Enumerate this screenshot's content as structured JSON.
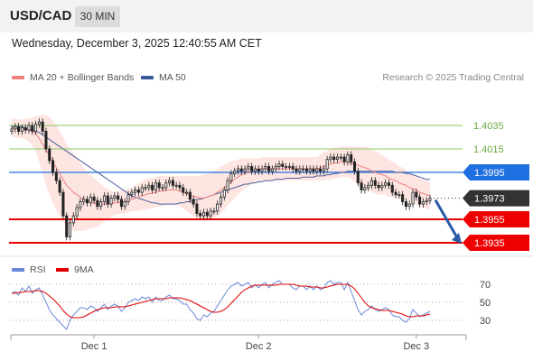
{
  "header": {
    "symbol": "USD/CAD",
    "timeframe": "30 MIN"
  },
  "datetime": "Wednesday, December 3, 2025 12:40:55 AM CET",
  "legend": {
    "ma20": {
      "label": "MA 20 + Bollinger Bands",
      "color": "#f08080"
    },
    "ma50": {
      "label": "MA 50",
      "color": "#3a5a9a"
    }
  },
  "credit": "Research © 2025 Trading Central",
  "rsi_legend": {
    "rsi": {
      "label": "RSI",
      "color": "#6a8ad8"
    },
    "ma9": {
      "label": "9MA",
      "color": "#e00000"
    }
  },
  "chart_data": [
    {
      "type": "candlestick",
      "title": "USD/CAD",
      "ylim": [
        1.3925,
        1.4065
      ],
      "x_ticks": [
        "Dec 1",
        "Dec 2",
        "Dec 3"
      ],
      "levels": [
        {
          "value": 1.4035,
          "label": "1.4035",
          "kind": "resistance",
          "color": "#8dc863"
        },
        {
          "value": 1.4015,
          "label": "1.4015",
          "kind": "resistance",
          "color": "#8dc863"
        },
        {
          "value": 1.3995,
          "label": "1.3995",
          "kind": "pivot",
          "color": "#1f6fe0"
        },
        {
          "value": 1.3973,
          "label": "1.3973",
          "kind": "last price",
          "color": "#333333"
        },
        {
          "value": 1.3955,
          "label": "1.3955",
          "kind": "support",
          "color": "#ee0000"
        },
        {
          "value": 1.3935,
          "label": "1.3935",
          "kind": "support",
          "color": "#ee0000"
        }
      ],
      "close": [
        1.4032,
        1.4034,
        1.403,
        1.4033,
        1.4031,
        1.4035,
        1.403,
        1.4036,
        1.4038,
        1.403,
        1.4015,
        1.4005,
        1.3995,
        1.3988,
        1.3978,
        1.3958,
        1.394,
        1.3952,
        1.3958,
        1.3965,
        1.397,
        1.3972,
        1.3969,
        1.3974,
        1.3971,
        1.3966,
        1.397,
        1.3975,
        1.3968,
        1.3973,
        1.3975,
        1.3972,
        1.3966,
        1.397,
        1.3976,
        1.3978,
        1.398,
        1.3978,
        1.3982,
        1.3982,
        1.3984,
        1.398,
        1.3986,
        1.3982,
        1.3982,
        1.3986,
        1.3988,
        1.3984,
        1.3984,
        1.3982,
        1.3978,
        1.3978,
        1.3972,
        1.3968,
        1.396,
        1.3958,
        1.3961,
        1.3958,
        1.3962,
        1.3962,
        1.3968,
        1.3974,
        1.398,
        1.3988,
        1.3994,
        1.3996,
        1.3998,
        1.3996,
        1.3998,
        1.4,
        1.3996,
        1.3998,
        1.3996,
        1.3998,
        1.4,
        1.3996,
        1.3998,
        1.4,
        1.4002,
        1.4,
        1.4,
        1.4,
        1.3998,
        1.3996,
        1.3998,
        1.3998,
        1.3996,
        1.3998,
        1.3996,
        1.3998,
        1.3996,
        1.3998,
        1.4006,
        1.4008,
        1.4006,
        1.4008,
        1.4008,
        1.4004,
        1.401,
        1.4004,
        1.3996,
        1.3986,
        1.398,
        1.3982,
        1.3984,
        1.3988,
        1.3984,
        1.3982,
        1.3984,
        1.3986,
        1.3984,
        1.3978,
        1.3976,
        1.3976,
        1.397,
        1.3966,
        1.3968,
        1.3978,
        1.3974,
        1.3968,
        1.397,
        1.3971,
        1.3973
      ],
      "ma20": [
        1.4033,
        1.4033,
        1.4032,
        1.4032,
        1.4032,
        1.4031,
        1.403,
        1.4028,
        1.4024,
        1.4019,
        1.4014,
        1.4009,
        1.4004,
        1.3999,
        1.3994,
        1.3989,
        1.3984,
        1.3981,
        1.3978,
        1.3976,
        1.3974,
        1.3972,
        1.3971,
        1.397,
        1.3969,
        1.3968,
        1.3968,
        1.3968,
        1.3968,
        1.3968,
        1.3969,
        1.3969,
        1.397,
        1.397,
        1.3971,
        1.3972,
        1.3973,
        1.3974,
        1.3975,
        1.3976,
        1.3977,
        1.3977,
        1.3978,
        1.3979,
        1.3979,
        1.398,
        1.398,
        1.398,
        1.398,
        1.3979,
        1.3978,
        1.3977,
        1.3976,
        1.3975,
        1.3974,
        1.3973,
        1.3973,
        1.3974,
        1.3975,
        1.3976,
        1.3978,
        1.398,
        1.3982,
        1.3985,
        1.3987,
        1.3989,
        1.3991,
        1.3993,
        1.3994,
        1.3995,
        1.3996,
        1.3997,
        1.3997,
        1.3998,
        1.3998,
        1.3998,
        1.3998,
        1.3998,
        1.3998,
        1.3998,
        1.3998,
        1.3998,
        1.3998,
        1.3998,
        1.3998,
        1.3998,
        1.3998,
        1.3998,
        1.3998,
        1.3998,
        1.3999,
        1.4,
        1.4001,
        1.4002,
        1.4003,
        1.4003,
        1.4004,
        1.4004,
        1.4004,
        1.4003,
        1.4002,
        1.4001,
        1.4,
        1.3999,
        1.3998,
        1.3996,
        1.3995,
        1.3994,
        1.3993,
        1.3992,
        1.399,
        1.3989,
        1.3988,
        1.3986,
        1.3985,
        1.3984,
        1.3982,
        1.3981,
        1.398,
        1.3978,
        1.3977,
        1.3976,
        1.3975
      ],
      "ma50": [
        1.4034,
        1.4034,
        1.4034,
        1.4034,
        1.4033,
        1.4032,
        1.4031,
        1.403,
        1.4029,
        1.4027,
        1.4025,
        1.4023,
        1.4021,
        1.4019,
        1.4017,
        1.4015,
        1.4013,
        1.4011,
        1.4009,
        1.4007,
        1.4005,
        1.4003,
        1.4001,
        1.3999,
        1.3997,
        1.3995,
        1.3993,
        1.3991,
        1.3989,
        1.3987,
        1.3985,
        1.3983,
        1.3981,
        1.3979,
        1.3977,
        1.3975,
        1.3974,
        1.3973,
        1.3972,
        1.3971,
        1.397,
        1.3969,
        1.3969,
        1.3968,
        1.3968,
        1.3968,
        1.3968,
        1.3968,
        1.3968,
        1.3969,
        1.3969,
        1.397,
        1.397,
        1.3971,
        1.3972,
        1.3972,
        1.3973,
        1.3974,
        1.3975,
        1.3976,
        1.3977,
        1.3978,
        1.3979,
        1.398,
        1.3981,
        1.3982,
        1.3983,
        1.3984,
        1.3985,
        1.3985,
        1.3986,
        1.3986,
        1.3987,
        1.3987,
        1.3988,
        1.3988,
        1.3988,
        1.3989,
        1.3989,
        1.3989,
        1.399,
        1.399,
        1.399,
        1.399,
        1.399,
        1.3991,
        1.3991,
        1.3991,
        1.3991,
        1.3992,
        1.3992,
        1.3992,
        1.3993,
        1.3993,
        1.3994,
        1.3994,
        1.3995,
        1.3995,
        1.3996,
        1.3996,
        1.3996,
        1.3996,
        1.3996,
        1.3996,
        1.3996,
        1.3996,
        1.3996,
        1.3996,
        1.3996,
        1.3996,
        1.3996,
        1.3996,
        1.3995,
        1.3995,
        1.3995,
        1.3994,
        1.3994,
        1.3993,
        1.3992,
        1.3991,
        1.399,
        1.3989,
        1.3989
      ],
      "bb_width": [
        0.0008,
        0.0008,
        0.0008,
        0.0008,
        0.0009,
        0.001,
        0.0012,
        0.0015,
        0.002,
        0.0025,
        0.003,
        0.0033,
        0.0035,
        0.0036,
        0.0036,
        0.0036,
        0.0035,
        0.0034,
        0.0033,
        0.0031,
        0.0029,
        0.0027,
        0.0025,
        0.0023,
        0.0021,
        0.0019,
        0.0017,
        0.0015,
        0.0013,
        0.0011,
        0.001,
        0.001,
        0.001,
        0.001,
        0.001,
        0.001,
        0.0011,
        0.0012,
        0.0012,
        0.0013,
        0.0013,
        0.0013,
        0.0013,
        0.0013,
        0.0013,
        0.0012,
        0.0012,
        0.0012,
        0.0012,
        0.0013,
        0.0014,
        0.0015,
        0.0016,
        0.0017,
        0.0018,
        0.0019,
        0.002,
        0.002,
        0.002,
        0.002,
        0.002,
        0.002,
        0.0019,
        0.0018,
        0.0017,
        0.0016,
        0.0015,
        0.0014,
        0.0013,
        0.0012,
        0.0011,
        0.001,
        0.001,
        0.001,
        0.001,
        0.001,
        0.001,
        0.001,
        0.001,
        0.001,
        0.001,
        0.001,
        0.001,
        0.001,
        0.001,
        0.001,
        0.001,
        0.001,
        0.001,
        0.001,
        0.0011,
        0.0012,
        0.0012,
        0.0013,
        0.0013,
        0.0013,
        0.0013,
        0.0013,
        0.0013,
        0.0014,
        0.0015,
        0.0016,
        0.0017,
        0.0018,
        0.0018,
        0.0018,
        0.0018,
        0.0018,
        0.0017,
        0.0016,
        0.0016,
        0.0015,
        0.0015,
        0.0014,
        0.0014,
        0.0013,
        0.0013,
        0.0012,
        0.0012,
        0.0012,
        0.0012,
        0.0012,
        0.0012
      ],
      "forecast_arrow": {
        "from": 1.3973,
        "to": 1.3935
      }
    },
    {
      "type": "line",
      "title": "RSI",
      "ylim": [
        15,
        80
      ],
      "y_ticks": [
        70,
        50,
        30
      ],
      "x_ticks": [
        "Dec 1",
        "Dec 2",
        "Dec 3"
      ],
      "series": [
        {
          "name": "RSI",
          "values": [
            60,
            62,
            58,
            66,
            62,
            68,
            60,
            64,
            66,
            58,
            50,
            42,
            36,
            32,
            28,
            24,
            20,
            30,
            36,
            40,
            44,
            44,
            42,
            46,
            44,
            40,
            44,
            48,
            42,
            46,
            48,
            46,
            40,
            44,
            50,
            52,
            54,
            52,
            56,
            54,
            56,
            50,
            56,
            52,
            52,
            56,
            58,
            54,
            54,
            52,
            48,
            48,
            42,
            38,
            32,
            30,
            36,
            34,
            38,
            40,
            46,
            52,
            58,
            64,
            68,
            70,
            72,
            68,
            70,
            72,
            66,
            70,
            66,
            70,
            72,
            66,
            70,
            72,
            74,
            70,
            70,
            70,
            66,
            64,
            68,
            68,
            64,
            68,
            64,
            68,
            64,
            66,
            72,
            74,
            70,
            72,
            72,
            64,
            72,
            62,
            52,
            42,
            36,
            40,
            42,
            46,
            42,
            40,
            42,
            44,
            42,
            36,
            34,
            34,
            30,
            28,
            32,
            42,
            38,
            34,
            36,
            38,
            40
          ]
        },
        {
          "name": "9MA",
          "values": [
            60,
            60,
            61,
            61,
            62,
            62,
            62,
            63,
            63,
            62,
            60,
            57,
            54,
            50,
            46,
            41,
            37,
            34,
            33,
            33,
            33,
            34,
            36,
            38,
            40,
            42,
            43,
            44,
            44,
            44,
            45,
            45,
            45,
            45,
            46,
            47,
            48,
            49,
            50,
            51,
            52,
            53,
            54,
            54,
            54,
            54,
            55,
            55,
            55,
            55,
            54,
            53,
            52,
            50,
            48,
            46,
            44,
            42,
            40,
            39,
            39,
            40,
            42,
            45,
            49,
            53,
            57,
            61,
            64,
            66,
            68,
            69,
            69,
            69,
            69,
            69,
            69,
            69,
            70,
            70,
            70,
            70,
            70,
            69,
            68,
            68,
            68,
            67,
            67,
            67,
            66,
            66,
            67,
            68,
            69,
            70,
            70,
            70,
            70,
            68,
            65,
            60,
            55,
            50,
            46,
            44,
            43,
            42,
            41,
            41,
            41,
            40,
            39,
            38,
            37,
            35,
            34,
            34,
            35,
            35,
            35,
            36,
            37
          ]
        }
      ]
    }
  ]
}
